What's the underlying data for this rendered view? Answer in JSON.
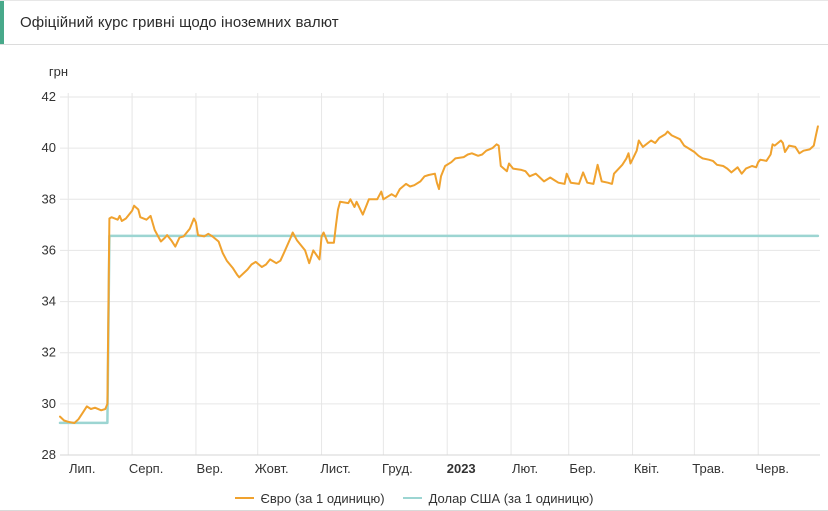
{
  "header": {
    "title": "Офіційний курс гривні щодо іноземних валют"
  },
  "colors": {
    "header_accent": "#48A98A",
    "grid": "#E6E6E6",
    "axis_line": "#D6D6D6",
    "text": "#333333",
    "euro_line": "#F0A22E",
    "usd_line": "#9CD5D2"
  },
  "chart_data": {
    "type": "line",
    "title": "Офіційний курс гривні щодо іноземних валют",
    "y_axis": {
      "unit": "грн",
      "min": 28,
      "max": 42,
      "step": 2,
      "ticks": [
        42,
        40,
        38,
        36,
        34,
        32,
        30,
        28
      ]
    },
    "x_axis": {
      "start": "2022-06-27",
      "end": "2023-07-01",
      "ticks": [
        {
          "date": "2022-07-01",
          "label": "Лип.",
          "bold": false
        },
        {
          "date": "2022-08-01",
          "label": "Серп.",
          "bold": false
        },
        {
          "date": "2022-09-01",
          "label": "Вер.",
          "bold": false
        },
        {
          "date": "2022-10-01",
          "label": "Жовт.",
          "bold": false
        },
        {
          "date": "2022-11-01",
          "label": "Лист.",
          "bold": false
        },
        {
          "date": "2022-12-01",
          "label": "Груд.",
          "bold": false
        },
        {
          "date": "2023-01-01",
          "label": "2023",
          "bold": true
        },
        {
          "date": "2023-02-01",
          "label": "Лют.",
          "bold": false
        },
        {
          "date": "2023-03-01",
          "label": "Бер.",
          "bold": false
        },
        {
          "date": "2023-04-01",
          "label": "Квіт.",
          "bold": false
        },
        {
          "date": "2023-05-01",
          "label": "Трав.",
          "bold": false
        },
        {
          "date": "2023-06-01",
          "label": "Черв.",
          "bold": false
        }
      ]
    },
    "grid": true,
    "legend_position": "bottom",
    "series": [
      {
        "name": "Євро (за 1 одиницю)",
        "color": "#F0A22E",
        "points": [
          [
            "2022-06-27",
            29.5
          ],
          [
            "2022-06-29",
            29.35
          ],
          [
            "2022-07-01",
            29.3
          ],
          [
            "2022-07-04",
            29.25
          ],
          [
            "2022-07-06",
            29.4
          ],
          [
            "2022-07-08",
            29.65
          ],
          [
            "2022-07-10",
            29.9
          ],
          [
            "2022-07-12",
            29.8
          ],
          [
            "2022-07-14",
            29.85
          ],
          [
            "2022-07-17",
            29.75
          ],
          [
            "2022-07-19",
            29.8
          ],
          [
            "2022-07-20",
            30.0
          ],
          [
            "2022-07-21",
            37.25
          ],
          [
            "2022-07-22",
            37.3
          ],
          [
            "2022-07-25",
            37.2
          ],
          [
            "2022-07-26",
            37.35
          ],
          [
            "2022-07-27",
            37.15
          ],
          [
            "2022-07-29",
            37.25
          ],
          [
            "2022-08-01",
            37.55
          ],
          [
            "2022-08-02",
            37.75
          ],
          [
            "2022-08-04",
            37.6
          ],
          [
            "2022-08-05",
            37.3
          ],
          [
            "2022-08-08",
            37.2
          ],
          [
            "2022-08-10",
            37.35
          ],
          [
            "2022-08-12",
            36.8
          ],
          [
            "2022-08-15",
            36.35
          ],
          [
            "2022-08-17",
            36.5
          ],
          [
            "2022-08-18",
            36.6
          ],
          [
            "2022-08-20",
            36.4
          ],
          [
            "2022-08-22",
            36.15
          ],
          [
            "2022-08-24",
            36.5
          ],
          [
            "2022-08-26",
            36.55
          ],
          [
            "2022-08-29",
            36.85
          ],
          [
            "2022-08-31",
            37.25
          ],
          [
            "2022-09-01",
            37.1
          ],
          [
            "2022-09-02",
            36.6
          ],
          [
            "2022-09-05",
            36.55
          ],
          [
            "2022-09-07",
            36.65
          ],
          [
            "2022-09-09",
            36.55
          ],
          [
            "2022-09-12",
            36.35
          ],
          [
            "2022-09-14",
            35.9
          ],
          [
            "2022-09-16",
            35.6
          ],
          [
            "2022-09-19",
            35.3
          ],
          [
            "2022-09-21",
            35.05
          ],
          [
            "2022-09-22",
            34.95
          ],
          [
            "2022-09-26",
            35.25
          ],
          [
            "2022-09-28",
            35.45
          ],
          [
            "2022-09-30",
            35.55
          ],
          [
            "2022-10-03",
            35.35
          ],
          [
            "2022-10-05",
            35.45
          ],
          [
            "2022-10-07",
            35.65
          ],
          [
            "2022-10-10",
            35.5
          ],
          [
            "2022-10-12",
            35.6
          ],
          [
            "2022-10-14",
            35.95
          ],
          [
            "2022-10-17",
            36.5
          ],
          [
            "2022-10-18",
            36.7
          ],
          [
            "2022-10-20",
            36.4
          ],
          [
            "2022-10-24",
            36.0
          ],
          [
            "2022-10-26",
            35.5
          ],
          [
            "2022-10-28",
            36.0
          ],
          [
            "2022-10-31",
            35.65
          ],
          [
            "2022-11-01",
            36.55
          ],
          [
            "2022-11-02",
            36.7
          ],
          [
            "2022-11-04",
            36.3
          ],
          [
            "2022-11-07",
            36.3
          ],
          [
            "2022-11-08",
            37.0
          ],
          [
            "2022-11-09",
            37.6
          ],
          [
            "2022-11-10",
            37.9
          ],
          [
            "2022-11-14",
            37.85
          ],
          [
            "2022-11-15",
            38.0
          ],
          [
            "2022-11-17",
            37.7
          ],
          [
            "2022-11-18",
            37.9
          ],
          [
            "2022-11-21",
            37.4
          ],
          [
            "2022-11-23",
            37.8
          ],
          [
            "2022-11-24",
            38.0
          ],
          [
            "2022-11-28",
            38.0
          ],
          [
            "2022-11-30",
            38.3
          ],
          [
            "2022-12-01",
            38.0
          ],
          [
            "2022-12-05",
            38.2
          ],
          [
            "2022-12-07",
            38.1
          ],
          [
            "2022-12-09",
            38.4
          ],
          [
            "2022-12-12",
            38.6
          ],
          [
            "2022-12-14",
            38.5
          ],
          [
            "2022-12-16",
            38.55
          ],
          [
            "2022-12-19",
            38.7
          ],
          [
            "2022-12-21",
            38.9
          ],
          [
            "2022-12-23",
            38.95
          ],
          [
            "2022-12-26",
            39.0
          ],
          [
            "2022-12-27",
            38.65
          ],
          [
            "2022-12-28",
            38.4
          ],
          [
            "2022-12-29",
            38.9
          ],
          [
            "2022-12-31",
            39.3
          ],
          [
            "2023-01-03",
            39.45
          ],
          [
            "2023-01-05",
            39.6
          ],
          [
            "2023-01-09",
            39.65
          ],
          [
            "2023-01-11",
            39.75
          ],
          [
            "2023-01-13",
            39.8
          ],
          [
            "2023-01-16",
            39.7
          ],
          [
            "2023-01-18",
            39.75
          ],
          [
            "2023-01-20",
            39.9
          ],
          [
            "2023-01-23",
            40.0
          ],
          [
            "2023-01-25",
            40.15
          ],
          [
            "2023-01-26",
            40.1
          ],
          [
            "2023-01-27",
            39.3
          ],
          [
            "2023-01-30",
            39.1
          ],
          [
            "2023-01-31",
            39.4
          ],
          [
            "2023-02-02",
            39.2
          ],
          [
            "2023-02-06",
            39.15
          ],
          [
            "2023-02-08",
            39.1
          ],
          [
            "2023-02-10",
            38.9
          ],
          [
            "2023-02-13",
            39.0
          ],
          [
            "2023-02-15",
            38.85
          ],
          [
            "2023-02-17",
            38.7
          ],
          [
            "2023-02-20",
            38.85
          ],
          [
            "2023-02-22",
            38.75
          ],
          [
            "2023-02-24",
            38.65
          ],
          [
            "2023-02-27",
            38.6
          ],
          [
            "2023-02-28",
            39.0
          ],
          [
            "2023-03-02",
            38.65
          ],
          [
            "2023-03-06",
            38.6
          ],
          [
            "2023-03-08",
            39.05
          ],
          [
            "2023-03-10",
            38.65
          ],
          [
            "2023-03-13",
            38.6
          ],
          [
            "2023-03-15",
            39.35
          ],
          [
            "2023-03-17",
            38.7
          ],
          [
            "2023-03-20",
            38.65
          ],
          [
            "2023-03-22",
            38.6
          ],
          [
            "2023-03-23",
            39.0
          ],
          [
            "2023-03-27",
            39.35
          ],
          [
            "2023-03-29",
            39.6
          ],
          [
            "2023-03-30",
            39.8
          ],
          [
            "2023-03-31",
            39.4
          ],
          [
            "2023-04-03",
            39.9
          ],
          [
            "2023-04-04",
            40.3
          ],
          [
            "2023-04-06",
            40.05
          ],
          [
            "2023-04-10",
            40.3
          ],
          [
            "2023-04-12",
            40.2
          ],
          [
            "2023-04-14",
            40.4
          ],
          [
            "2023-04-17",
            40.55
          ],
          [
            "2023-04-18",
            40.65
          ],
          [
            "2023-04-20",
            40.5
          ],
          [
            "2023-04-24",
            40.35
          ],
          [
            "2023-04-26",
            40.1
          ],
          [
            "2023-04-28",
            40.0
          ],
          [
            "2023-05-01",
            39.85
          ],
          [
            "2023-05-03",
            39.7
          ],
          [
            "2023-05-05",
            39.6
          ],
          [
            "2023-05-08",
            39.55
          ],
          [
            "2023-05-10",
            39.5
          ],
          [
            "2023-05-12",
            39.35
          ],
          [
            "2023-05-15",
            39.3
          ],
          [
            "2023-05-17",
            39.2
          ],
          [
            "2023-05-19",
            39.05
          ],
          [
            "2023-05-22",
            39.25
          ],
          [
            "2023-05-24",
            39.0
          ],
          [
            "2023-05-26",
            39.2
          ],
          [
            "2023-05-29",
            39.3
          ],
          [
            "2023-05-31",
            39.25
          ],
          [
            "2023-06-01",
            39.45
          ],
          [
            "2023-06-02",
            39.55
          ],
          [
            "2023-06-05",
            39.5
          ],
          [
            "2023-06-07",
            39.75
          ],
          [
            "2023-06-08",
            40.15
          ],
          [
            "2023-06-09",
            40.1
          ],
          [
            "2023-06-12",
            40.3
          ],
          [
            "2023-06-13",
            40.2
          ],
          [
            "2023-06-14",
            39.85
          ],
          [
            "2023-06-16",
            40.1
          ],
          [
            "2023-06-19",
            40.05
          ],
          [
            "2023-06-21",
            39.8
          ],
          [
            "2023-06-23",
            39.9
          ],
          [
            "2023-06-26",
            39.95
          ],
          [
            "2023-06-28",
            40.1
          ],
          [
            "2023-06-29",
            40.5
          ],
          [
            "2023-06-30",
            40.85
          ]
        ]
      },
      {
        "name": "Долар США (за 1 одиницю)",
        "color": "#9CD5D2",
        "points": [
          [
            "2022-06-27",
            29.2549
          ],
          [
            "2022-07-20",
            29.2549
          ],
          [
            "2022-07-21",
            36.5686
          ],
          [
            "2023-06-30",
            36.5686
          ]
        ]
      }
    ]
  }
}
